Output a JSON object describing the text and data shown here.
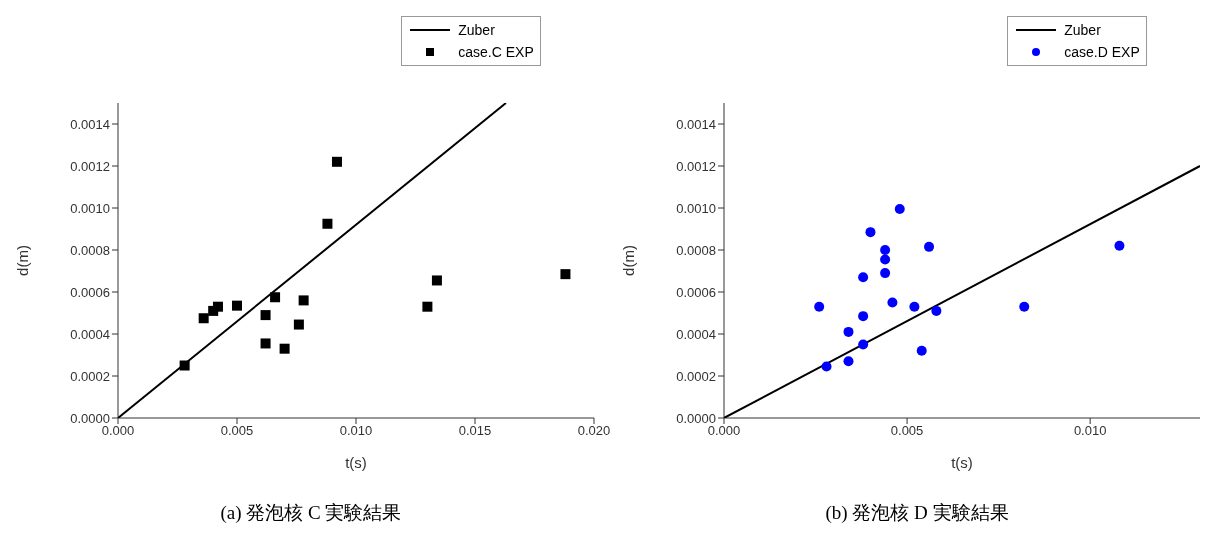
{
  "chart_data": [
    {
      "type": "scatter",
      "xlabel": "t(s)",
      "ylabel": "d(m)",
      "xlim": [
        0,
        0.02
      ],
      "ylim": [
        0,
        0.0015
      ],
      "xticks": [
        {
          "value": 0,
          "label": "0.000"
        },
        {
          "value": 0.005,
          "label": "0.005"
        },
        {
          "value": 0.01,
          "label": "0.010"
        },
        {
          "value": 0.015,
          "label": "0.015"
        },
        {
          "value": 0.02,
          "label": "0.020"
        }
      ],
      "yticks": [
        {
          "value": 0,
          "label": "0.0000"
        },
        {
          "value": 0.0002,
          "label": "0.0002"
        },
        {
          "value": 0.0004,
          "label": "0.0004"
        },
        {
          "value": 0.0006,
          "label": "0.0006"
        },
        {
          "value": 0.0008,
          "label": "0.0008"
        },
        {
          "value": 0.001,
          "label": "0.0010"
        },
        {
          "value": 0.0012,
          "label": "0.0012"
        },
        {
          "value": 0.0014,
          "label": "0.0014"
        }
      ],
      "legend": "top",
      "grid": false,
      "series": [
        {
          "name": "Zuber",
          "type": "line",
          "color": "#000000",
          "x": [
            0,
            0.0163
          ],
          "values": [
            0,
            0.0015
          ]
        },
        {
          "name": "case.C EXP",
          "type": "scatter",
          "marker": "square",
          "color": "#000000",
          "x": [
            0.0028,
            0.0036,
            0.004,
            0.0042,
            0.005,
            0.0062,
            0.0062,
            0.0066,
            0.007,
            0.0076,
            0.0078,
            0.0088,
            0.0092,
            0.013,
            0.0134,
            0.0188
          ],
          "values": [
            0.00025,
            0.000475,
            0.00051,
            0.00053,
            0.000535,
            0.00049,
            0.000355,
            0.000575,
            0.00033,
            0.000445,
            0.00056,
            0.000925,
            0.00122,
            0.00053,
            0.000655,
            0.000685
          ]
        }
      ],
      "annotations": [
        "(a)  発泡核 C 実験結果"
      ]
    },
    {
      "type": "scatter",
      "xlabel": "t(s)",
      "ylabel": "d(m)",
      "xlim": [
        0,
        0.013
      ],
      "ylim": [
        0,
        0.0015
      ],
      "xticks": [
        {
          "value": 0,
          "label": "0.000"
        },
        {
          "value": 0.005,
          "label": "0.005"
        },
        {
          "value": 0.01,
          "label": "0.010"
        }
      ],
      "yticks": [
        {
          "value": 0,
          "label": "0.0000"
        },
        {
          "value": 0.0002,
          "label": "0.0002"
        },
        {
          "value": 0.0004,
          "label": "0.0004"
        },
        {
          "value": 0.0006,
          "label": "0.0006"
        },
        {
          "value": 0.0008,
          "label": "0.0008"
        },
        {
          "value": 0.001,
          "label": "0.0010"
        },
        {
          "value": 0.0012,
          "label": "0.0012"
        },
        {
          "value": 0.0014,
          "label": "0.0014"
        }
      ],
      "legend": "top",
      "grid": false,
      "series": [
        {
          "name": "Zuber",
          "type": "line",
          "color": "#000000",
          "x": [
            0,
            0.013
          ],
          "values": [
            0,
            0.0012
          ]
        },
        {
          "name": "case.D EXP",
          "type": "scatter",
          "marker": "circle",
          "color": "#0000ff",
          "x": [
            0.0026,
            0.0028,
            0.0034,
            0.0034,
            0.0038,
            0.0038,
            0.0038,
            0.004,
            0.0044,
            0.0044,
            0.0044,
            0.0046,
            0.0048,
            0.0052,
            0.0054,
            0.0056,
            0.0058,
            0.0082,
            0.0108
          ],
          "values": [
            0.00053,
            0.000245,
            0.00041,
            0.00027,
            0.00067,
            0.000485,
            0.00035,
            0.000885,
            0.0008,
            0.000755,
            0.00069,
            0.00055,
            0.000995,
            0.00053,
            0.00032,
            0.000815,
            0.00051,
            0.00053,
            0.00082
          ]
        }
      ],
      "annotations": [
        "(b)  発泡核 D 実験結果"
      ]
    }
  ]
}
